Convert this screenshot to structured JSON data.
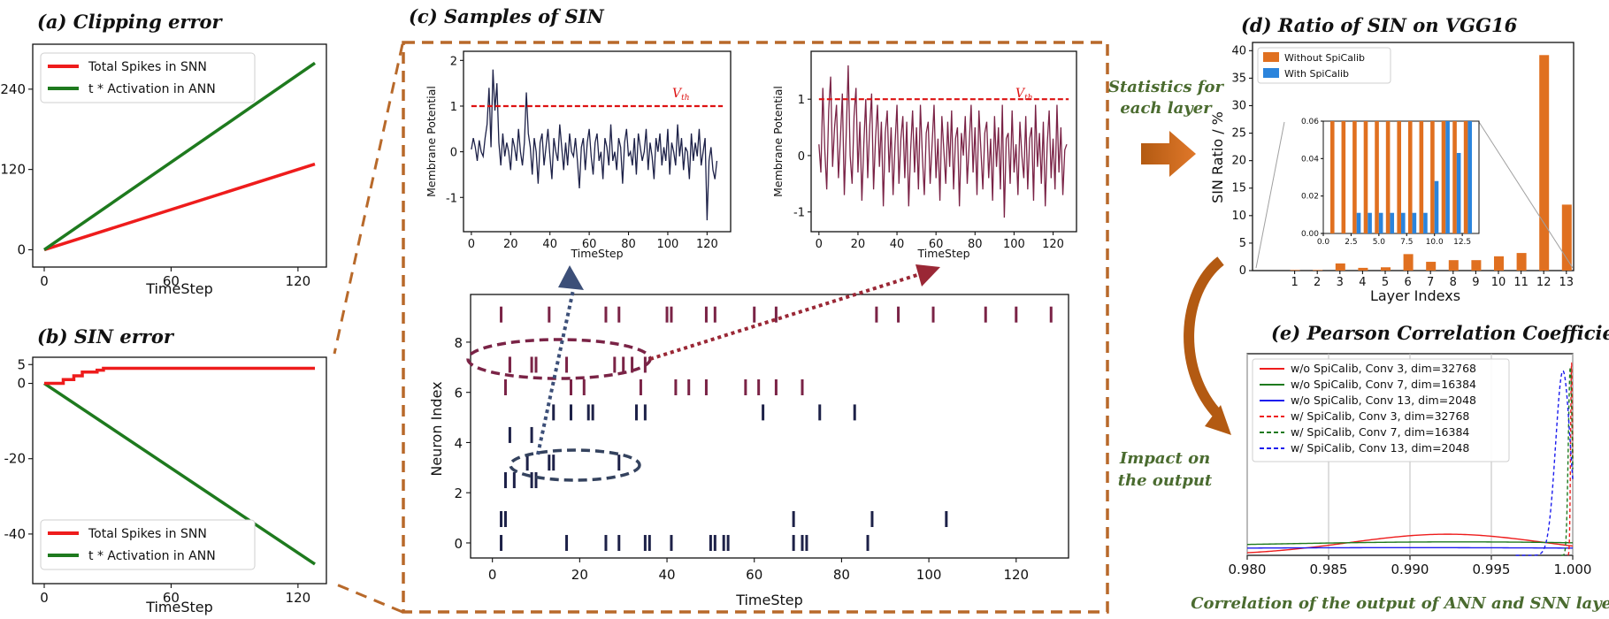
{
  "chart_data": [
    {
      "id": "a",
      "type": "line",
      "title": "(a) Clipping error",
      "xlabel": "TimeStep",
      "ylabel": "",
      "xlim": [
        0,
        128
      ],
      "ylim": [
        -10,
        290
      ],
      "xticks": [
        "0",
        "60",
        "120"
      ],
      "yticks": [
        "0",
        "120",
        "240"
      ],
      "series": [
        {
          "name": "Total Spikes in SNN",
          "color": "#ee1c1c",
          "x": [
            0,
            128
          ],
          "y": [
            0,
            128
          ]
        },
        {
          "name": "t * Activation in ANN",
          "color": "#1e7a1e",
          "x": [
            0,
            128
          ],
          "y": [
            0,
            279
          ]
        }
      ]
    },
    {
      "id": "b",
      "type": "line",
      "title": "(b) SIN error",
      "xlabel": "TimeStep",
      "ylabel": "",
      "xlim": [
        0,
        128
      ],
      "ylim": [
        -52,
        6
      ],
      "xticks": [
        "0",
        "60",
        "120"
      ],
      "yticks": [
        "5",
        "0",
        "-20",
        "-40"
      ],
      "series": [
        {
          "name": "Total Spikes in SNN",
          "color": "#ee1c1c",
          "x": [
            0,
            7,
            9,
            11,
            14,
            16,
            18,
            22,
            25,
            28,
            128
          ],
          "y": [
            0,
            0,
            1,
            1,
            2,
            2,
            3,
            3,
            3.5,
            4,
            4
          ]
        },
        {
          "name": "t * Activation in ANN",
          "color": "#1e7a1e",
          "x": [
            0,
            128
          ],
          "y": [
            0,
            -48
          ]
        }
      ]
    },
    {
      "id": "c1",
      "type": "line",
      "title": "(c) Samples of SIN",
      "xlabel": "TimeStep",
      "ylabel": "Membrane Potential",
      "threshold_label": "V_th",
      "threshold": 1,
      "xlim": [
        -4,
        132
      ],
      "ylim": [
        -1.75,
        2.2
      ],
      "xticks": [
        "0",
        "20",
        "40",
        "60",
        "80",
        "100",
        "120"
      ],
      "yticks": [
        "2",
        "1",
        "0",
        "-1"
      ],
      "color": "#1d2148",
      "y": [
        0.05,
        0.3,
        0.1,
        -0.2,
        0.25,
        0.0,
        -0.1,
        0.3,
        0.6,
        1.4,
        0.1,
        1.8,
        0.9,
        1.5,
        0.2,
        -0.3,
        0.4,
        -0.1,
        0.2,
        0.0,
        -0.4,
        0.3,
        0.1,
        -0.2,
        0.5,
        0.0,
        -0.3,
        0.2,
        1.3,
        0.4,
        0.1,
        -0.5,
        0.3,
        0.0,
        -0.7,
        0.2,
        0.4,
        -0.3,
        0.1,
        0.5,
        -0.1,
        -0.6,
        0.3,
        0.0,
        -0.2,
        0.6,
        0.1,
        -0.4,
        0.2,
        -0.3,
        0.4,
        0.0,
        -0.1,
        0.3,
        -0.2,
        -0.8,
        0.1,
        0.3,
        -0.4,
        0.2,
        0.5,
        -0.1,
        -0.5,
        0.2,
        0.4,
        -0.2,
        0.0,
        -0.6,
        0.3,
        0.1,
        -0.3,
        0.6,
        -0.2,
        0.0,
        -0.4,
        0.3,
        0.1,
        -0.7,
        0.2,
        0.5,
        -0.1,
        0.0,
        -0.3,
        0.3,
        -0.5,
        0.4,
        0.1,
        -0.2,
        0.0,
        0.5,
        -0.4,
        0.2,
        -0.1,
        -0.6,
        0.3,
        0.0,
        0.4,
        -0.3,
        0.1,
        -0.2,
        0.5,
        -0.5,
        0.2,
        0.0,
        -0.3,
        0.6,
        -0.1,
        0.3,
        -0.4,
        0.1,
        0.0,
        -0.6,
        0.4,
        -0.2,
        0.2,
        -0.1,
        0.5,
        -0.3,
        0.0,
        0.3,
        -1.5,
        -0.2,
        0.1,
        -0.4,
        -0.6,
        -0.2
      ]
    },
    {
      "id": "c2",
      "type": "line",
      "title": "",
      "xlabel": "TimeStep",
      "ylabel": "Membrane Potential",
      "threshold_label": "V_th",
      "threshold": 1,
      "xlim": [
        -4,
        132
      ],
      "ylim": [
        -1.35,
        1.85
      ],
      "xticks": [
        "0",
        "20",
        "40",
        "60",
        "80",
        "100",
        "120"
      ],
      "yticks": [
        "1",
        "0",
        "-1"
      ],
      "color": "#7a2346",
      "y": [
        0.2,
        -0.3,
        1.2,
        0.1,
        -0.6,
        0.8,
        1.4,
        -0.2,
        0.5,
        0.9,
        -0.4,
        0.3,
        1.1,
        -0.7,
        0.4,
        1.6,
        0.0,
        -0.5,
        0.7,
        1.2,
        -0.3,
        0.6,
        -0.8,
        0.2,
        1.0,
        -0.4,
        0.5,
        1.1,
        -0.6,
        0.3,
        0.9,
        -0.2,
        0.6,
        -0.9,
        0.4,
        0.8,
        -0.3,
        0.5,
        -0.7,
        0.2,
        0.9,
        -0.5,
        0.3,
        0.7,
        -0.4,
        0.6,
        -0.9,
        0.1,
        0.8,
        -0.3,
        0.5,
        -0.6,
        0.9,
        0.0,
        -0.7,
        0.4,
        0.6,
        -0.5,
        0.2,
        0.9,
        -0.4,
        0.3,
        -0.8,
        0.7,
        0.1,
        -0.5,
        0.6,
        -0.2,
        0.8,
        -0.6,
        0.3,
        0.5,
        -0.9,
        0.4,
        0.0,
        0.7,
        -0.5,
        0.2,
        0.9,
        -0.3,
        0.5,
        -0.7,
        0.8,
        0.1,
        -0.6,
        0.4,
        0.6,
        -0.4,
        0.3,
        -0.8,
        0.7,
        -0.2,
        0.5,
        -0.6,
        0.9,
        -1.1,
        0.3,
        0.4,
        -0.5,
        0.8,
        -0.3,
        0.2,
        -0.7,
        0.6,
        0.0,
        -0.4,
        0.7,
        -0.6,
        0.3,
        0.5,
        -0.8,
        0.9,
        -0.2,
        0.4,
        -0.5,
        0.6,
        -0.9,
        0.2,
        0.8,
        -0.4,
        0.3,
        -0.6,
        0.9,
        -0.3,
        0.5,
        -0.7,
        0.1,
        0.2
      ]
    },
    {
      "id": "c3",
      "type": "scatter",
      "title": "",
      "xlabel": "TimeStep",
      "ylabel": "Neuron Index",
      "xlim": [
        -5,
        132
      ],
      "ylim": [
        -0.6,
        9.9
      ],
      "xticks": [
        "0",
        "20",
        "40",
        "60",
        "80",
        "100",
        "120"
      ],
      "yticks": [
        "0",
        "2",
        "4",
        "6",
        "8"
      ],
      "colors": [
        "#1d2148",
        "#1d2148",
        "#1d2148",
        "#1d2148",
        "#1d2148",
        "#1d2148",
        "#7a2346",
        "#7a2346",
        "#7a2346",
        "#7a2346"
      ],
      "rows": [
        [
          2,
          17,
          26,
          29,
          35,
          36,
          41,
          50,
          51,
          53,
          54,
          69,
          71,
          72,
          86
        ],
        [
          2,
          3,
          69,
          87,
          104
        ],
        [],
        [
          3,
          5,
          9,
          10
        ],
        [
          8,
          13,
          14,
          29
        ],
        [
          4,
          9
        ],
        [
          14,
          18,
          22,
          23,
          33,
          35,
          62,
          75,
          83
        ],
        [
          3,
          18,
          21,
          34,
          42,
          45,
          49,
          58,
          61,
          65,
          71
        ],
        [
          4,
          10,
          17,
          30,
          35
        ],
        [
          4,
          9,
          28,
          32
        ],
        [],
        [
          2,
          13,
          26,
          29,
          40,
          41,
          49,
          51,
          60,
          65,
          88,
          93,
          101,
          113,
          120,
          128
        ]
      ]
    },
    {
      "id": "d",
      "type": "bar",
      "title": "(d) Ratio of SIN on VGG16",
      "xlabel": "Layer Indexs",
      "ylabel": "SIN Ratio / %",
      "categories": [
        "1",
        "2",
        "3",
        "4",
        "5",
        "6",
        "7",
        "8",
        "9",
        "10",
        "11",
        "12",
        "13"
      ],
      "ylim": [
        0,
        40
      ],
      "yticks": [
        "0",
        "5",
        "10",
        "15",
        "20",
        "25",
        "30",
        "35",
        "40"
      ],
      "series": [
        {
          "name": "Without SpiCalib",
          "color": "#e07020",
          "values": [
            0.1,
            0.1,
            1.3,
            0.5,
            0.6,
            3.0,
            1.6,
            1.9,
            1.9,
            2.6,
            3.2,
            39.2,
            12.0
          ]
        },
        {
          "name": "With SpiCalib",
          "color": "#2b84dc",
          "values": [
            0,
            0,
            0,
            0,
            0,
            0,
            0,
            0,
            0,
            0,
            0,
            0,
            0
          ]
        }
      ],
      "inset": {
        "xlim": [
          0,
          14
        ],
        "ylim": [
          0,
          0.06
        ],
        "xticks": [
          "0.0",
          "2.5",
          "5.0",
          "7.5",
          "10.0",
          "12.5"
        ],
        "yticks": [
          "0.00",
          "0.02",
          "0.04",
          "0.06"
        ],
        "without": [
          0.06,
          0.06,
          0.06,
          0.06,
          0.06,
          0.06,
          0.06,
          0.06,
          0.06,
          0.06,
          0.06,
          0.06,
          0.06
        ],
        "with": [
          0.0,
          0.0,
          0.011,
          0.011,
          0.011,
          0.011,
          0.011,
          0.011,
          0.011,
          0.028,
          0.06,
          0.043,
          0.06
        ]
      }
    },
    {
      "id": "e",
      "type": "line",
      "title": "(e) Pearson Correlation Coefficient",
      "xlabel": "",
      "ylabel": "",
      "xlim": [
        0.98,
        1.0
      ],
      "xticks": [
        "0.980",
        "0.985",
        "0.990",
        "0.995",
        "1.000"
      ],
      "series": [
        {
          "name": "w/o SpiCalib, Conv 3, dim=32768",
          "color": "#ee1c1c",
          "dash": false
        },
        {
          "name": "w/o SpiCalib, Conv 7, dim=16384",
          "color": "#1e7a1e",
          "dash": false
        },
        {
          "name": "w/o SpiCalib, Conv 13, dim=2048",
          "color": "#1c1cee",
          "dash": false
        },
        {
          "name": "w/ SpiCalib, Conv 3, dim=32768",
          "color": "#ee1c1c",
          "dash": true
        },
        {
          "name": "w/ SpiCalib, Conv 7, dim=16384",
          "color": "#1e7a1e",
          "dash": true
        },
        {
          "name": "w/ SpiCalib, Conv 13, dim=2048",
          "color": "#1c1cee",
          "dash": true
        }
      ]
    }
  ],
  "annotations": {
    "stats_line1": "Statistics for",
    "stats_line2": "each layer",
    "impact_line1": "Impact on",
    "impact_line2": "the output",
    "footer": "Correlation of the output of ANN and SNN layers",
    "vth": "V",
    "vth_sub": "th"
  }
}
